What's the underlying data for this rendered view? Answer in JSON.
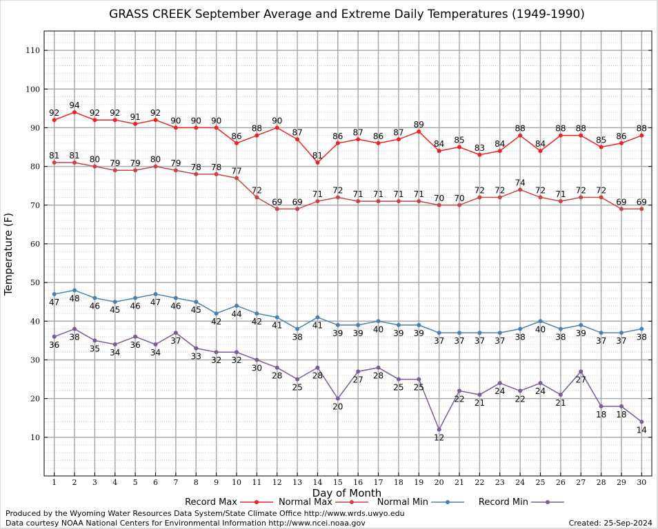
{
  "chart_data": {
    "type": "line",
    "title": "GRASS CREEK September Average and Extreme Daily Temperatures (1949-1990)",
    "xlabel": "Day of Month",
    "ylabel": "Temperature (F)",
    "ylim": [
      0,
      115
    ],
    "xlim": [
      0.5,
      30.5
    ],
    "y_ticks": [
      10,
      20,
      30,
      40,
      50,
      60,
      70,
      80,
      90,
      100,
      110
    ],
    "x": [
      1,
      2,
      3,
      4,
      5,
      6,
      7,
      8,
      9,
      10,
      11,
      12,
      13,
      14,
      15,
      16,
      17,
      18,
      19,
      20,
      21,
      22,
      23,
      24,
      25,
      26,
      27,
      28,
      29,
      30
    ],
    "grid": true,
    "legend_position": "bottom",
    "series": [
      {
        "name": "Record Max",
        "color": "#ee2222",
        "label_pos": "above",
        "values": [
          92,
          94,
          92,
          92,
          91,
          92,
          90,
          90,
          90,
          86,
          88,
          90,
          87,
          81,
          86,
          87,
          86,
          87,
          89,
          84,
          85,
          83,
          84,
          88,
          84,
          88,
          88,
          85,
          86,
          88
        ]
      },
      {
        "name": "Normal Max",
        "color": "#c84444",
        "label_pos": "above",
        "values": [
          81,
          81,
          80,
          79,
          79,
          80,
          79,
          78,
          78,
          77,
          72,
          69,
          69,
          71,
          72,
          71,
          71,
          71,
          71,
          70,
          70,
          72,
          72,
          74,
          72,
          71,
          72,
          72,
          69,
          69
        ]
      },
      {
        "name": "Normal Min",
        "color": "#4a7fb5",
        "label_pos": "below",
        "values": [
          47,
          48,
          46,
          45,
          46,
          47,
          46,
          45,
          42,
          44,
          42,
          41,
          38,
          41,
          39,
          39,
          40,
          39,
          39,
          37,
          37,
          37,
          37,
          38,
          40,
          38,
          39,
          37,
          37,
          38
        ]
      },
      {
        "name": "Record Min",
        "color": "#7a5a99",
        "label_pos": "below",
        "values": [
          36,
          38,
          35,
          34,
          36,
          34,
          37,
          33,
          32,
          32,
          30,
          28,
          25,
          28,
          20,
          27,
          28,
          25,
          25,
          12,
          22,
          21,
          24,
          22,
          24,
          21,
          27,
          18,
          18,
          14
        ]
      }
    ]
  },
  "footer": {
    "credit_line1": "Produced by the Wyoming Water Resources Data System/State Climate Office http://www.wrds.uwyo.edu",
    "credit_line2": "Data courtesy NOAA National Centers for Environmental Information http://www.ncei.noaa.gov",
    "created": "Created:  25-Sep-2024"
  }
}
